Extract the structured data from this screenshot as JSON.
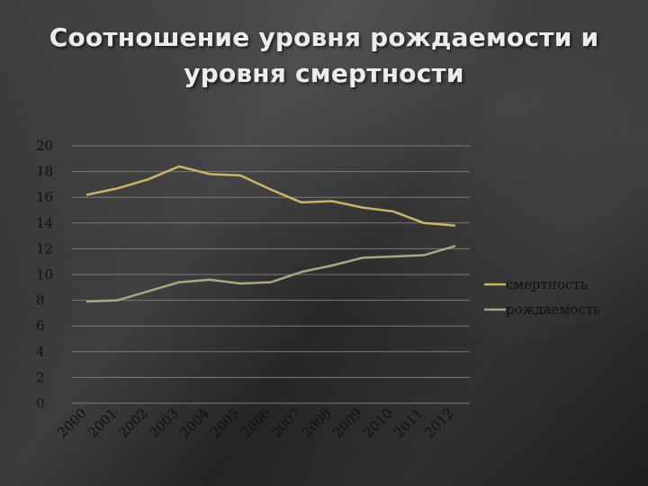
{
  "title": {
    "line1": "Соотношение уровня рождаемости и",
    "line2": "уровня смертности"
  },
  "chart_data": {
    "type": "line",
    "categories": [
      "2000",
      "2001",
      "2002",
      "2003",
      "2004",
      "2005",
      "2006",
      "2007",
      "2008",
      "2009",
      "2010",
      "2011",
      "2012"
    ],
    "series": [
      {
        "name": "смертность",
        "color": "#c9b56a",
        "values": [
          16.2,
          16.7,
          17.4,
          18.4,
          17.8,
          17.7,
          16.6,
          15.6,
          15.7,
          15.2,
          14.9,
          14.0,
          13.8
        ]
      },
      {
        "name": "рождаемость",
        "color": "#aaa782",
        "values": [
          7.9,
          8.0,
          8.7,
          9.4,
          9.6,
          9.3,
          9.4,
          10.2,
          10.7,
          11.3,
          11.4,
          11.5,
          12.2
        ]
      }
    ],
    "yticks": [
      0,
      2,
      4,
      6,
      8,
      10,
      12,
      14,
      16,
      18,
      20
    ],
    "ylim": [
      0,
      20
    ],
    "grid": true,
    "legend": "right"
  }
}
